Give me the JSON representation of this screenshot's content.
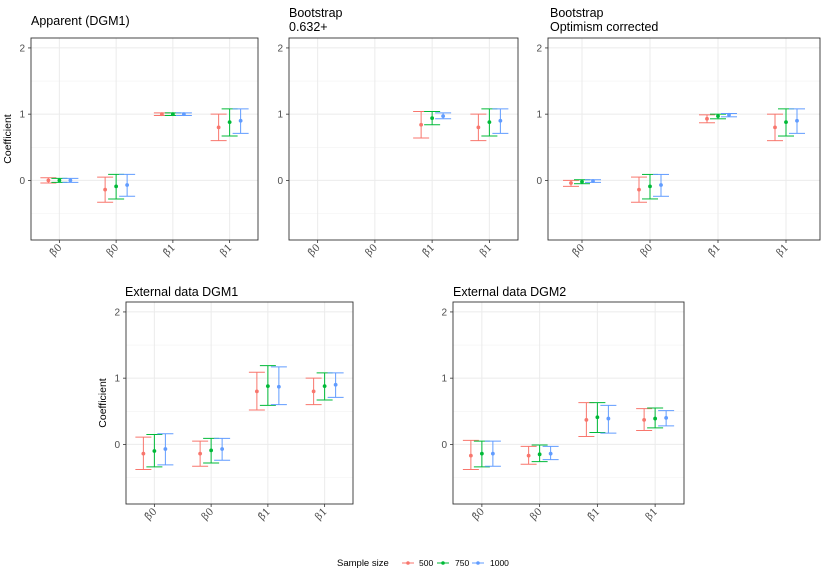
{
  "chart_data": [
    {
      "type": "errorbar",
      "title_lines": [
        "Apparent (DGM1)"
      ],
      "ylabel": "Coefficient",
      "ylim": [
        -0.9,
        2.15
      ],
      "yticks": [
        0,
        1,
        2
      ],
      "categories": [
        "β̂0",
        "β0",
        "β̂1",
        "β1"
      ],
      "series": [
        {
          "name": "500",
          "points": [
            [
              0,
              -0.04,
              0.04
            ],
            [
              -0.14,
              -0.33,
              0.05
            ],
            [
              1.0,
              0.98,
              1.02
            ],
            [
              0.8,
              0.6,
              1.0
            ]
          ]
        },
        {
          "name": "750",
          "points": [
            [
              0,
              -0.03,
              0.03
            ],
            [
              -0.09,
              -0.28,
              0.09
            ],
            [
              1.0,
              0.98,
              1.02
            ],
            [
              0.88,
              0.67,
              1.08
            ]
          ]
        },
        {
          "name": "1000",
          "points": [
            [
              0,
              -0.03,
              0.03
            ],
            [
              -0.07,
              -0.24,
              0.09
            ],
            [
              1.0,
              0.98,
              1.02
            ],
            [
              0.9,
              0.71,
              1.08
            ]
          ]
        }
      ]
    },
    {
      "type": "errorbar",
      "title_lines": [
        "Bootstrap",
        "0.632+"
      ],
      "ylabel": "",
      "ylim": [
        -0.9,
        2.15
      ],
      "yticks": [
        0,
        1,
        2
      ],
      "categories": [
        "β̂0",
        "β0",
        "β̂1",
        "β1"
      ],
      "series": [
        {
          "name": "500",
          "points": [
            null,
            null,
            [
              0.84,
              0.64,
              1.04
            ],
            [
              0.8,
              0.6,
              1.0
            ]
          ]
        },
        {
          "name": "750",
          "points": [
            null,
            null,
            [
              0.94,
              0.84,
              1.04
            ],
            [
              0.88,
              0.67,
              1.08
            ]
          ]
        },
        {
          "name": "1000",
          "points": [
            null,
            null,
            [
              0.97,
              0.93,
              1.02
            ],
            [
              0.9,
              0.71,
              1.08
            ]
          ]
        }
      ]
    },
    {
      "type": "errorbar",
      "title_lines": [
        "Bootstrap",
        "Optimism corrected"
      ],
      "ylabel": "",
      "ylim": [
        -0.9,
        2.15
      ],
      "yticks": [
        0,
        1,
        2
      ],
      "categories": [
        "β̂0",
        "β0",
        "β̂1",
        "β1"
      ],
      "series": [
        {
          "name": "500",
          "points": [
            [
              -0.04,
              -0.09,
              0.0
            ],
            [
              -0.14,
              -0.33,
              0.05
            ],
            [
              0.93,
              0.87,
              0.99
            ],
            [
              0.8,
              0.6,
              1.0
            ]
          ]
        },
        {
          "name": "750",
          "points": [
            [
              -0.02,
              -0.05,
              0.01
            ],
            [
              -0.09,
              -0.28,
              0.09
            ],
            [
              0.97,
              0.93,
              1.0
            ],
            [
              0.88,
              0.67,
              1.08
            ]
          ]
        },
        {
          "name": "1000",
          "points": [
            [
              -0.01,
              -0.03,
              0.01
            ],
            [
              -0.07,
              -0.24,
              0.09
            ],
            [
              0.99,
              0.96,
              1.01
            ],
            [
              0.9,
              0.71,
              1.08
            ]
          ]
        }
      ]
    },
    {
      "type": "errorbar",
      "title_lines": [
        "External data DGM1"
      ],
      "ylabel": "Coefficient",
      "ylim": [
        -0.9,
        2.15
      ],
      "yticks": [
        0,
        1,
        2
      ],
      "categories": [
        "β̂0",
        "β0",
        "β̂1",
        "β1"
      ],
      "series": [
        {
          "name": "500",
          "points": [
            [
              -0.14,
              -0.38,
              0.11
            ],
            [
              -0.14,
              -0.33,
              0.05
            ],
            [
              0.8,
              0.52,
              1.09
            ],
            [
              0.8,
              0.6,
              1.0
            ]
          ]
        },
        {
          "name": "750",
          "points": [
            [
              -0.1,
              -0.34,
              0.15
            ],
            [
              -0.09,
              -0.28,
              0.09
            ],
            [
              0.88,
              0.59,
              1.19
            ],
            [
              0.88,
              0.67,
              1.08
            ]
          ]
        },
        {
          "name": "1000",
          "points": [
            [
              -0.07,
              -0.31,
              0.16
            ],
            [
              -0.07,
              -0.24,
              0.09
            ],
            [
              0.87,
              0.6,
              1.17
            ],
            [
              0.9,
              0.71,
              1.08
            ]
          ]
        }
      ]
    },
    {
      "type": "errorbar",
      "title_lines": [
        "External data DGM2"
      ],
      "ylabel": "",
      "ylim": [
        -0.9,
        2.15
      ],
      "yticks": [
        0,
        1,
        2
      ],
      "categories": [
        "β̂0",
        "β0",
        "β̂1",
        "β1"
      ],
      "series": [
        {
          "name": "500",
          "points": [
            [
              -0.17,
              -0.38,
              0.06
            ],
            [
              -0.17,
              -0.3,
              -0.03
            ],
            [
              0.37,
              0.12,
              0.63
            ],
            [
              0.37,
              0.21,
              0.54
            ]
          ]
        },
        {
          "name": "750",
          "points": [
            [
              -0.14,
              -0.34,
              0.05
            ],
            [
              -0.15,
              -0.26,
              -0.01
            ],
            [
              0.41,
              0.18,
              0.63
            ],
            [
              0.39,
              0.25,
              0.55
            ]
          ]
        },
        {
          "name": "1000",
          "points": [
            [
              -0.14,
              -0.33,
              0.05
            ],
            [
              -0.14,
              -0.23,
              -0.03
            ],
            [
              0.39,
              0.17,
              0.59
            ],
            [
              0.4,
              0.28,
              0.51
            ]
          ]
        }
      ]
    }
  ],
  "legend": {
    "title": "Sample size",
    "items": [
      {
        "label": "500",
        "color": "#F8766D"
      },
      {
        "label": "750",
        "color": "#00BA38"
      },
      {
        "label": "1000",
        "color": "#619CFF"
      }
    ]
  }
}
